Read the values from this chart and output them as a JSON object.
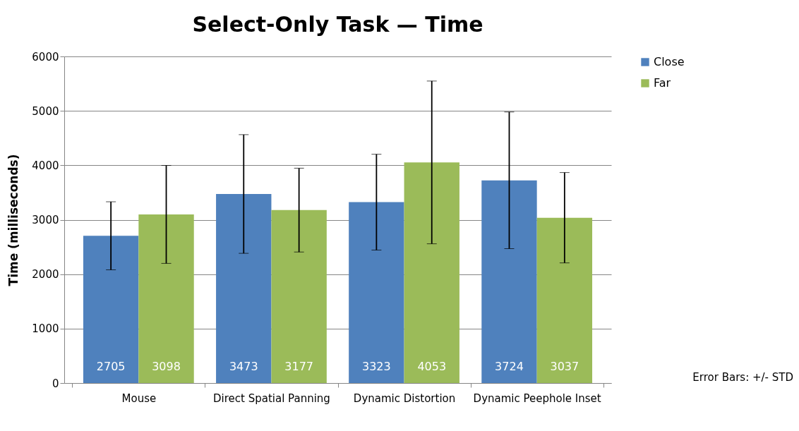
{
  "chart_data": {
    "type": "bar",
    "title": "Select-Only Task — Time",
    "ylabel": "Time (milliseconds)",
    "categories": [
      "Mouse",
      "Direct Spatial Panning",
      "Dynamic Distortion",
      "Dynamic Peephole Inset"
    ],
    "series": [
      {
        "name": "Close",
        "color": "#4f81bd",
        "values": [
          2705,
          3473,
          3323,
          3724
        ],
        "errors": [
          625,
          1090,
          880,
          1255
        ]
      },
      {
        "name": "Far",
        "color": "#9bbb59",
        "values": [
          3098,
          3177,
          4053,
          3037
        ],
        "errors": [
          900,
          770,
          1495,
          830
        ]
      }
    ],
    "ylim": [
      0,
      6000
    ],
    "yticks": [
      0,
      1000,
      2000,
      3000,
      4000,
      5000,
      6000
    ],
    "grid": "y",
    "legend": "right",
    "data_labels": true,
    "annotations": [
      "Error Bars: +/- STD"
    ]
  }
}
